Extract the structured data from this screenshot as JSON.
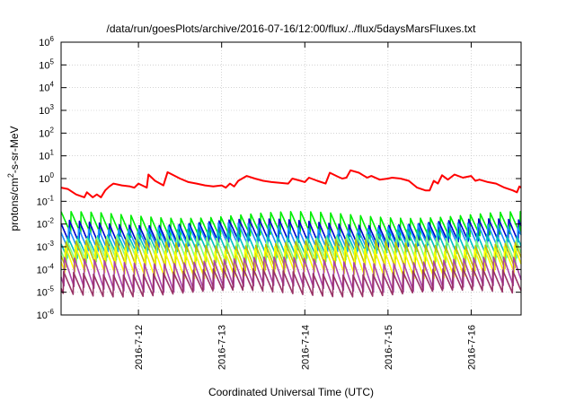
{
  "chart_data": {
    "type": "line",
    "title": "/data/run/goesPlots/archive/2016-07-16/12:00/flux/../flux/5daysMarsFluxes.txt",
    "xlabel": "Coordinated Universal Time (UTC)",
    "ylabel": {
      "prefix": "protons/cm",
      "sup": "2",
      "suffix": "-s-sr-MeV"
    },
    "yscale": "log",
    "ylim": [
      1e-06,
      1000000.0
    ],
    "y_ticks": [
      {
        "base": "10",
        "exp": "-6",
        "value": 1e-06
      },
      {
        "base": "10",
        "exp": "-5",
        "value": 1e-05
      },
      {
        "base": "10",
        "exp": "-4",
        "value": 0.0001
      },
      {
        "base": "10",
        "exp": "-3",
        "value": 0.001
      },
      {
        "base": "10",
        "exp": "-2",
        "value": 0.01
      },
      {
        "base": "10",
        "exp": "-1",
        "value": 0.1
      },
      {
        "base": "10",
        "exp": "0",
        "value": 1
      },
      {
        "base": "10",
        "exp": "1",
        "value": 10
      },
      {
        "base": "10",
        "exp": "2",
        "value": 100
      },
      {
        "base": "10",
        "exp": "3",
        "value": 1000
      },
      {
        "base": "10",
        "exp": "4",
        "value": 10000
      },
      {
        "base": "10",
        "exp": "5",
        "value": 100000
      },
      {
        "base": "10",
        "exp": "6",
        "value": 1000000
      }
    ],
    "x_ticks": [
      {
        "label": "2016-7-12",
        "day": 12
      },
      {
        "label": "2016-7-13",
        "day": 13
      },
      {
        "label": "2016-7-14",
        "day": 14
      },
      {
        "label": "2016-7-15",
        "day": 15
      },
      {
        "label": "2016-7-16",
        "day": 16
      }
    ],
    "xlim_days": [
      11.07,
      16.6
    ],
    "grid": true,
    "legend": "none",
    "series": [
      {
        "color": "#ff0000",
        "points": [
          [
            11.07,
            0.4
          ],
          [
            11.15,
            0.35
          ],
          [
            11.25,
            0.2
          ],
          [
            11.35,
            0.15
          ],
          [
            11.38,
            0.25
          ],
          [
            11.45,
            0.15
          ],
          [
            11.5,
            0.2
          ],
          [
            11.55,
            0.15
          ],
          [
            11.6,
            0.3
          ],
          [
            11.65,
            0.45
          ],
          [
            11.7,
            0.6
          ],
          [
            11.8,
            0.5
          ],
          [
            11.9,
            0.45
          ],
          [
            11.95,
            0.4
          ],
          [
            12.0,
            0.6
          ],
          [
            12.1,
            0.4
          ],
          [
            12.12,
            1.5
          ],
          [
            12.2,
            0.8
          ],
          [
            12.3,
            0.5
          ],
          [
            12.35,
            1.9
          ],
          [
            12.5,
            1.0
          ],
          [
            12.6,
            0.7
          ],
          [
            12.7,
            0.6
          ],
          [
            12.8,
            0.5
          ],
          [
            12.9,
            0.45
          ],
          [
            13.0,
            0.5
          ],
          [
            13.05,
            0.4
          ],
          [
            13.1,
            0.6
          ],
          [
            13.15,
            0.45
          ],
          [
            13.2,
            0.8
          ],
          [
            13.3,
            1.3
          ],
          [
            13.4,
            1.0
          ],
          [
            13.5,
            0.8
          ],
          [
            13.6,
            0.7
          ],
          [
            13.7,
            0.65
          ],
          [
            13.8,
            0.6
          ],
          [
            13.85,
            1.0
          ],
          [
            13.95,
            0.8
          ],
          [
            14.0,
            0.7
          ],
          [
            14.05,
            1.1
          ],
          [
            14.15,
            0.8
          ],
          [
            14.25,
            0.6
          ],
          [
            14.3,
            1.8
          ],
          [
            14.4,
            1.2
          ],
          [
            14.45,
            1.0
          ],
          [
            14.5,
            1.1
          ],
          [
            14.55,
            2.3
          ],
          [
            14.65,
            1.8
          ],
          [
            14.7,
            1.4
          ],
          [
            14.75,
            1.1
          ],
          [
            14.8,
            1.3
          ],
          [
            14.9,
            0.9
          ],
          [
            15.0,
            1.0
          ],
          [
            15.05,
            1.1
          ],
          [
            15.15,
            1.0
          ],
          [
            15.25,
            0.8
          ],
          [
            15.35,
            0.4
          ],
          [
            15.45,
            0.3
          ],
          [
            15.5,
            0.3
          ],
          [
            15.55,
            0.8
          ],
          [
            15.6,
            0.6
          ],
          [
            15.65,
            1.4
          ],
          [
            15.72,
            0.9
          ],
          [
            15.8,
            1.5
          ],
          [
            15.9,
            1.1
          ],
          [
            16.0,
            1.3
          ],
          [
            16.05,
            0.8
          ],
          [
            16.1,
            0.9
          ],
          [
            16.2,
            0.7
          ],
          [
            16.3,
            0.6
          ],
          [
            16.4,
            0.4
          ],
          [
            16.5,
            0.3
          ],
          [
            16.55,
            0.25
          ],
          [
            16.58,
            0.45
          ],
          [
            16.6,
            0.4
          ]
        ]
      },
      {
        "color": "#00ee00",
        "base": 0.025,
        "depth": 1.0,
        "period": 0.12,
        "phase": 0.0
      },
      {
        "color": "#0000cc",
        "base": 0.012,
        "depth": 1.0,
        "period": 0.12,
        "phase": 0.02
      },
      {
        "color": "#1e90ff",
        "base": 0.008,
        "depth": 1.0,
        "period": 0.12,
        "phase": 0.03
      },
      {
        "color": "#00bfbf",
        "base": 0.004,
        "depth": 1.0,
        "period": 0.12,
        "phase": 0.04
      },
      {
        "color": "#7fff7f",
        "base": 0.0025,
        "depth": 1.1,
        "period": 0.12,
        "phase": 0.05
      },
      {
        "color": "#bfbf00",
        "base": 0.0015,
        "depth": 1.15,
        "period": 0.12,
        "phase": 0.06
      },
      {
        "color": "#ffff00",
        "base": 0.0008,
        "depth": 1.2,
        "period": 0.12,
        "phase": 0.07
      },
      {
        "color": "#aa44aa",
        "base": 0.00025,
        "depth": 1.3,
        "period": 0.12,
        "phase": 0.08
      },
      {
        "color": "#993366",
        "base": 8e-05,
        "depth": 1.0,
        "period": 0.12,
        "phase": 0.09
      }
    ]
  }
}
